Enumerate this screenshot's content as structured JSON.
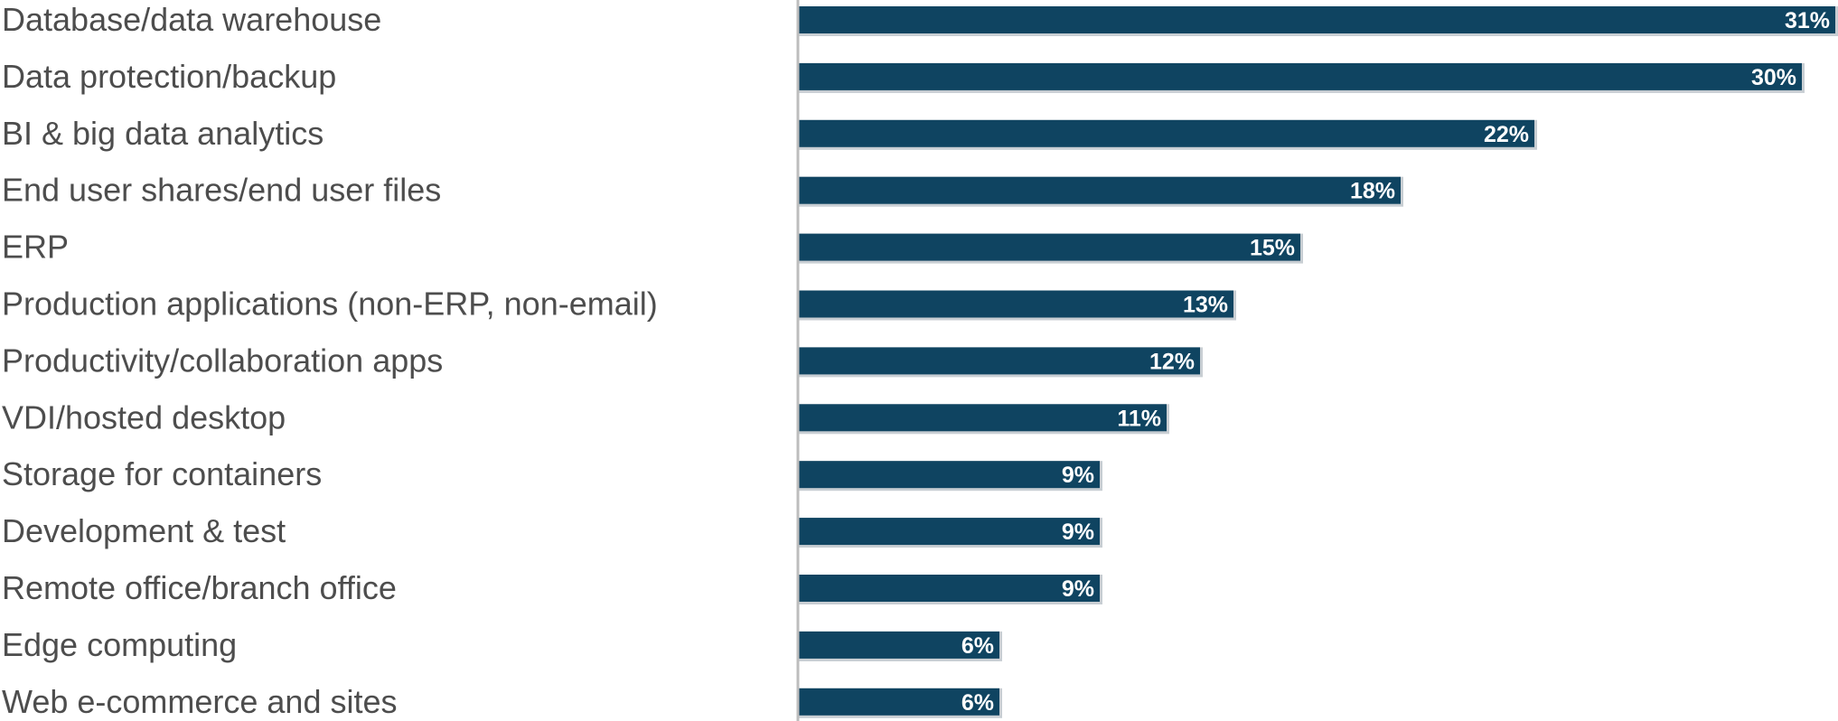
{
  "chart_data": {
    "type": "bar",
    "orientation": "horizontal",
    "categories": [
      "Database/data warehouse",
      "Data protection/backup",
      "BI & big data analytics",
      "End user shares/end user files",
      "ERP",
      "Production applications (non-ERP, non-email)",
      "Productivity/collaboration apps",
      "VDI/hosted desktop",
      "Storage for containers",
      "Development & test",
      "Remote office/branch office",
      "Edge computing",
      "Web e-commerce and sites"
    ],
    "values": [
      31,
      30,
      22,
      18,
      15,
      13,
      12,
      11,
      9,
      9,
      9,
      6,
      6
    ],
    "data_labels": [
      "31%",
      "30%",
      "22%",
      "18%",
      "15%",
      "13%",
      "12%",
      "11%",
      "9%",
      "9%",
      "9%",
      "6%",
      "6%"
    ],
    "xlim": [
      0,
      31
    ],
    "grid": false,
    "legend": "none",
    "bar_color": "#0f4461"
  }
}
